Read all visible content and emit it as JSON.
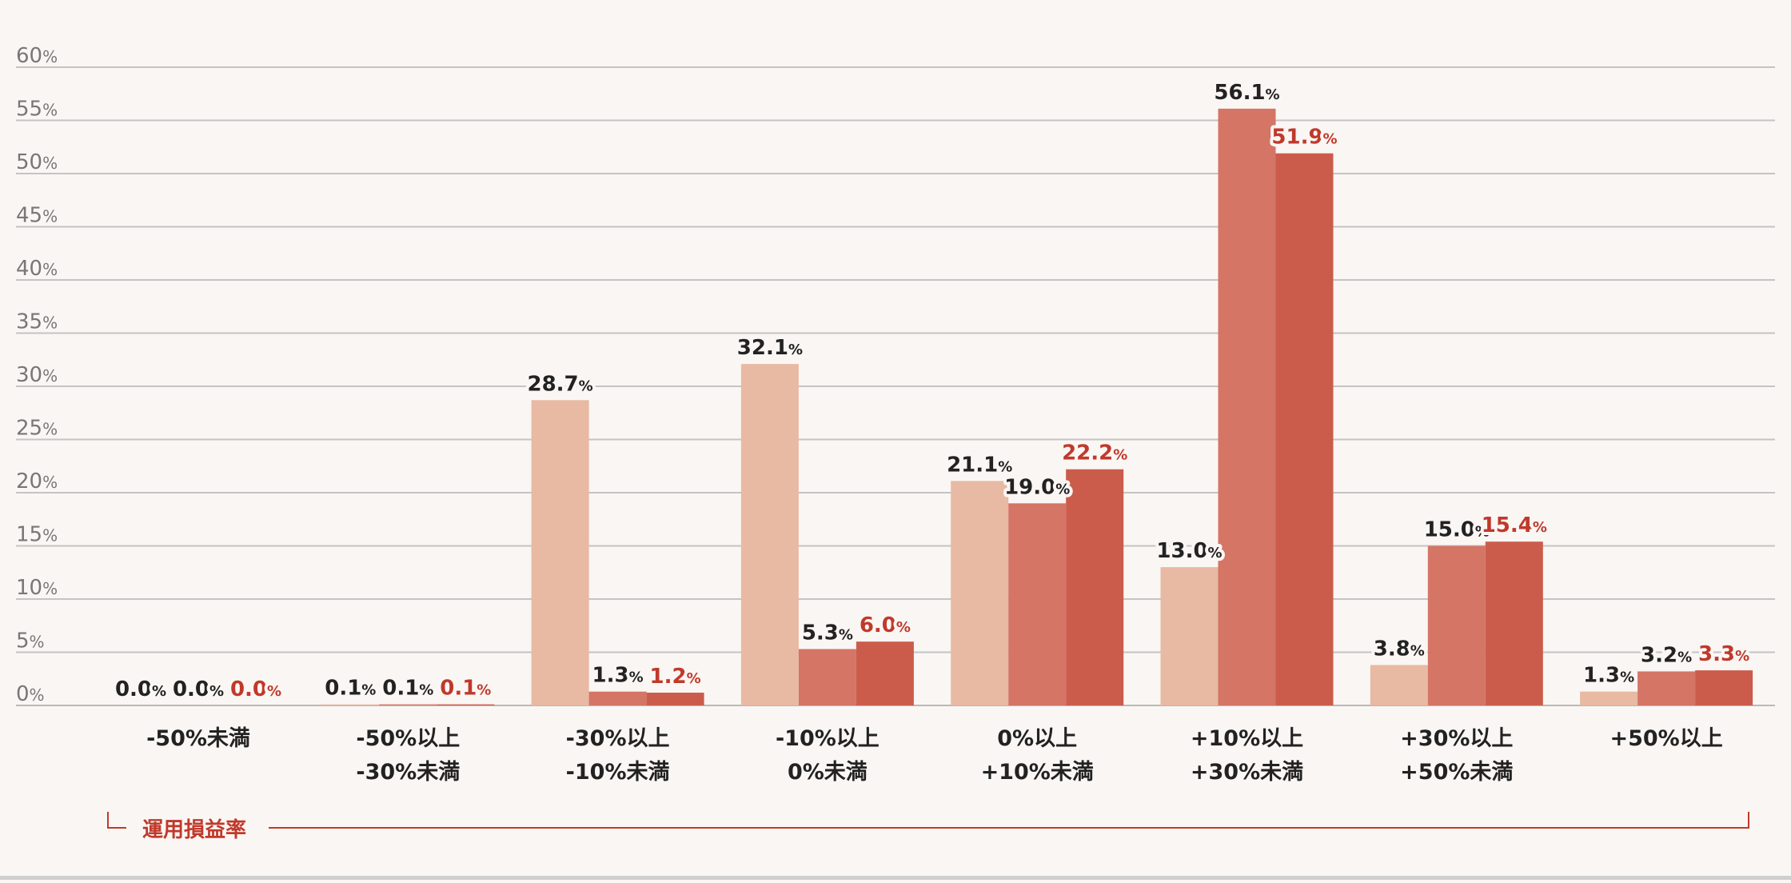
{
  "chart_data": {
    "type": "bar",
    "categories": [
      [
        "-50%未満"
      ],
      [
        "-50%以上",
        "-30%未満"
      ],
      [
        "-30%以上",
        "-10%未満"
      ],
      [
        "-10%以上",
        "0%未満"
      ],
      [
        "0%以上",
        "+10%未満"
      ],
      [
        "+10%以上",
        "+30%未満"
      ],
      [
        "+30%以上",
        "+50%未満"
      ],
      [
        "+50%以上"
      ]
    ],
    "series": [
      {
        "values": [
          0.0,
          0.1,
          28.7,
          32.1,
          21.1,
          13.0,
          3.8,
          1.3
        ],
        "color": "#e8b9a3",
        "label_color": "#222222"
      },
      {
        "values": [
          0.0,
          0.1,
          1.3,
          5.3,
          19.0,
          56.1,
          15.0,
          3.2
        ],
        "color": "#d47566",
        "label_color": "#222222"
      },
      {
        "values": [
          0.0,
          0.1,
          1.2,
          6.0,
          22.2,
          51.9,
          15.4,
          3.3
        ],
        "color": "#cb5c4b",
        "label_color": "#c0392b"
      }
    ],
    "ylim": [
      0,
      60
    ],
    "yticks": [
      0,
      5,
      10,
      15,
      20,
      25,
      30,
      35,
      40,
      45,
      50,
      55,
      60
    ],
    "tick_suffix": "%",
    "value_suffix": "%",
    "xlabel": "運用損益率",
    "grid": true,
    "legend": "none"
  }
}
